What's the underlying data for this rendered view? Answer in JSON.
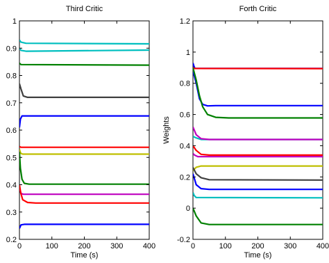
{
  "chart_data": [
    {
      "type": "line",
      "title": "Third Critic",
      "xlabel": "Time (s)",
      "ylabel": "",
      "xlim": [
        0,
        400
      ],
      "ylim": [
        0.2,
        1.0
      ],
      "xticks": [
        "0",
        "100",
        "200",
        "300",
        "400"
      ],
      "yticks": [
        "0.2",
        "0.3",
        "0.4",
        "0.5",
        "0.6",
        "0.7",
        "0.8",
        "0.9",
        "1"
      ],
      "grid": false,
      "series": [
        {
          "color": "#00bfbf",
          "points": [
            [
              0,
              0.93
            ],
            [
              5,
              0.922
            ],
            [
              20,
              0.918
            ],
            [
              400,
              0.916
            ]
          ]
        },
        {
          "color": "#00bfbf",
          "points": [
            [
              0,
              0.9
            ],
            [
              5,
              0.892
            ],
            [
              20,
              0.889
            ],
            [
              400,
              0.893
            ]
          ]
        },
        {
          "color": "#008000",
          "points": [
            [
              0,
              0.845
            ],
            [
              5,
              0.84
            ],
            [
              400,
              0.838
            ]
          ]
        },
        {
          "color": "#404040",
          "points": [
            [
              0,
              0.77
            ],
            [
              5,
              0.75
            ],
            [
              12,
              0.725
            ],
            [
              25,
              0.72
            ],
            [
              400,
              0.72
            ]
          ]
        },
        {
          "color": "#0000ff",
          "points": [
            [
              0,
              0.61
            ],
            [
              3,
              0.64
            ],
            [
              8,
              0.652
            ],
            [
              20,
              0.652
            ],
            [
              400,
              0.652
            ]
          ]
        },
        {
          "color": "#ff0000",
          "points": [
            [
              0,
              0.54
            ],
            [
              5,
              0.537
            ],
            [
              400,
              0.537
            ]
          ]
        },
        {
          "color": "#bfbf00",
          "points": [
            [
              0,
              0.53
            ],
            [
              4,
              0.515
            ],
            [
              10,
              0.512
            ],
            [
              400,
              0.512
            ]
          ]
        },
        {
          "color": "#008000",
          "points": [
            [
              0,
              0.52
            ],
            [
              3,
              0.46
            ],
            [
              8,
              0.42
            ],
            [
              15,
              0.405
            ],
            [
              30,
              0.402
            ],
            [
              400,
              0.402
            ]
          ]
        },
        {
          "color": "#bf00bf",
          "points": [
            [
              0,
              0.39
            ],
            [
              5,
              0.368
            ],
            [
              12,
              0.365
            ],
            [
              400,
              0.365
            ]
          ]
        },
        {
          "color": "#ff0000",
          "points": [
            [
              0,
              0.4
            ],
            [
              4,
              0.37
            ],
            [
              10,
              0.345
            ],
            [
              25,
              0.335
            ],
            [
              50,
              0.333
            ],
            [
              400,
              0.333
            ]
          ]
        },
        {
          "color": "#0000ff",
          "points": [
            [
              0,
              0.24
            ],
            [
              5,
              0.253
            ],
            [
              15,
              0.255
            ],
            [
              400,
              0.255
            ]
          ]
        }
      ]
    },
    {
      "type": "line",
      "title": "Forth Critic",
      "xlabel": "Time (s)",
      "ylabel": "Weights",
      "xlim": [
        0,
        400
      ],
      "ylim": [
        -0.2,
        1.2
      ],
      "xticks": [
        "0",
        "100",
        "200",
        "300",
        "400"
      ],
      "yticks": [
        "-0.2",
        "0",
        "0.2",
        "0.4",
        "0.6",
        "0.8",
        "1",
        "1.2"
      ],
      "grid": false,
      "series": [
        {
          "color": "#0000ff",
          "points": [
            [
              0,
              0.93
            ],
            [
              3,
              0.91
            ],
            [
              6,
              0.895
            ],
            [
              400,
              0.895
            ]
          ]
        },
        {
          "color": "#ff0000",
          "points": [
            [
              0,
              0.9
            ],
            [
              5,
              0.895
            ],
            [
              400,
              0.894
            ]
          ]
        },
        {
          "color": "#0000ff",
          "points": [
            [
              0,
              0.88
            ],
            [
              10,
              0.8
            ],
            [
              20,
              0.7
            ],
            [
              30,
              0.665
            ],
            [
              45,
              0.655
            ],
            [
              70,
              0.657
            ],
            [
              400,
              0.657
            ]
          ]
        },
        {
          "color": "#008000",
          "points": [
            [
              0,
              0.9
            ],
            [
              10,
              0.82
            ],
            [
              20,
              0.72
            ],
            [
              30,
              0.65
            ],
            [
              45,
              0.6
            ],
            [
              70,
              0.582
            ],
            [
              110,
              0.578
            ],
            [
              400,
              0.578
            ]
          ]
        },
        {
          "color": "#00bfbf",
          "points": [
            [
              0,
              0.46
            ],
            [
              10,
              0.45
            ],
            [
              25,
              0.44
            ],
            [
              400,
              0.44
            ]
          ]
        },
        {
          "color": "#bf00bf",
          "points": [
            [
              0,
              0.52
            ],
            [
              10,
              0.47
            ],
            [
              25,
              0.445
            ],
            [
              50,
              0.44
            ],
            [
              400,
              0.44
            ]
          ]
        },
        {
          "color": "#ff0000",
          "points": [
            [
              0,
              0.4
            ],
            [
              10,
              0.37
            ],
            [
              25,
              0.345
            ],
            [
              50,
              0.34
            ],
            [
              400,
              0.34
            ]
          ]
        },
        {
          "color": "#bf00bf",
          "points": [
            [
              0,
              0.35
            ],
            [
              5,
              0.34
            ],
            [
              15,
              0.33
            ],
            [
              400,
              0.33
            ]
          ]
        },
        {
          "color": "#bfbf00",
          "points": [
            [
              0,
              0.24
            ],
            [
              10,
              0.262
            ],
            [
              25,
              0.27
            ],
            [
              400,
              0.27
            ]
          ]
        },
        {
          "color": "#404040",
          "points": [
            [
              0,
              0.26
            ],
            [
              10,
              0.22
            ],
            [
              25,
              0.195
            ],
            [
              50,
              0.182
            ],
            [
              400,
              0.18
            ]
          ]
        },
        {
          "color": "#0000ff",
          "points": [
            [
              0,
              0.22
            ],
            [
              10,
              0.15
            ],
            [
              25,
              0.125
            ],
            [
              50,
              0.12
            ],
            [
              400,
              0.12
            ]
          ]
        },
        {
          "color": "#00bfbf",
          "points": [
            [
              0,
              0.1
            ],
            [
              4,
              0.08
            ],
            [
              10,
              0.068
            ],
            [
              400,
              0.066
            ]
          ]
        },
        {
          "color": "#008000",
          "points": [
            [
              0,
              0.0
            ],
            [
              10,
              -0.05
            ],
            [
              25,
              -0.095
            ],
            [
              50,
              -0.105
            ],
            [
              400,
              -0.105
            ]
          ]
        }
      ]
    }
  ]
}
